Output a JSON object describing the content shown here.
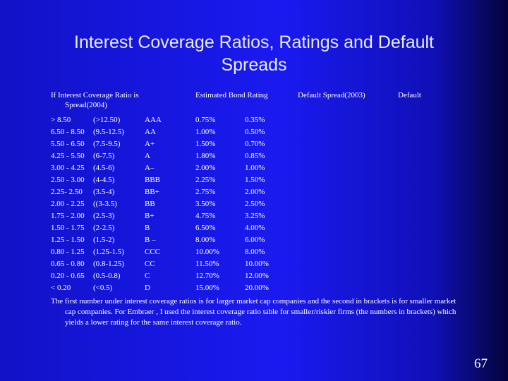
{
  "slide": {
    "title_line1": "Interest Coverage Ratios, Ratings and Default",
    "title_line2": "Spreads",
    "headers": {
      "coverage": "If Interest Coverage Ratio is",
      "coverage_cont": "Spread(2004)",
      "rating": "Estimated Bond Rating",
      "spread2003": "Default Spread(2003)",
      "default": "Default"
    },
    "rows": [
      [
        "> 8.50",
        "(>12.50)",
        "AAA",
        "0.75%",
        "0.35%"
      ],
      [
        "6.50 - 8.50",
        "(9.5-12.5)",
        "AA",
        "1.00%",
        "0.50%"
      ],
      [
        "5.50 - 6.50",
        "(7.5-9.5)",
        "A+",
        "1.50%",
        "0.70%"
      ],
      [
        "4.25 - 5.50",
        "(6-7.5)",
        "A",
        "1.80%",
        "0.85%"
      ],
      [
        "3.00 - 4.25",
        "(4.5-6)",
        "A–",
        "2.00%",
        "1.00%"
      ],
      [
        "2.50 - 3.00",
        "(4-4.5)",
        "BBB",
        "2.25%",
        "1.50%"
      ],
      [
        "2.25- 2.50",
        "(3.5-4)",
        "BB+",
        "2.75%",
        "2.00%"
      ],
      [
        "2.00 - 2.25",
        "((3-3.5)",
        "BB",
        "3.50%",
        "2.50%"
      ],
      [
        "1.75 - 2.00",
        "(2.5-3)",
        "B+",
        "4.75%",
        "3.25%"
      ],
      [
        "1.50 - 1.75",
        "(2-2.5)",
        "B",
        "6.50%",
        "4.00%"
      ],
      [
        "1.25 - 1.50",
        "(1.5-2)",
        "B –",
        "8.00%",
        "6.00%"
      ],
      [
        "0.80 - 1.25",
        "(1.25-1.5)",
        "CCC",
        "10.00%",
        "8.00%"
      ],
      [
        "0.65 - 0.80",
        "(0.8-1.25)",
        "CC",
        "11.50%",
        "10.00%"
      ],
      [
        "0.20 - 0.65",
        "(0.5-0.8)",
        "C",
        "12.70%",
        "12.00%"
      ],
      [
        "< 0.20",
        "(<0.5)",
        "D",
        "15.00%",
        "20.00%"
      ]
    ],
    "footnote": "The first number under interest coverage ratios is for larger market cap companies and the second in brackets is for smaller market cap companies. For Embraer , I used the interest coverage ratio table for smaller/riskier firms (the numbers in brackets) which yields a lower rating for the same interest coverage ratio.",
    "page_number": "67"
  }
}
